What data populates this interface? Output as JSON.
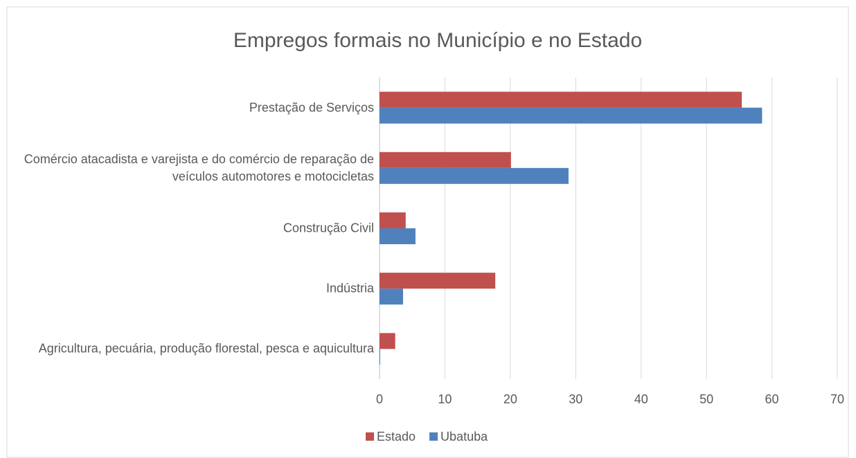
{
  "chart_data": {
    "type": "hbar",
    "title": "Empregos formais no Município e no Estado",
    "categories": [
      "Prestação de Serviços",
      "Comércio atacadista e varejista e do comércio de reparação de veículos automotores e motocicletas",
      "Construção Civil",
      "Indústria",
      "Agricultura, pecuária, produção florestal, pesca e aquicultura"
    ],
    "series": [
      {
        "name": "Estado",
        "color": "#c0504d",
        "values": [
          55.4,
          20.1,
          4.0,
          17.7,
          2.4
        ]
      },
      {
        "name": "Ubatuba",
        "color": "#4f81bd",
        "values": [
          58.5,
          28.9,
          5.5,
          3.6,
          0.1
        ]
      }
    ],
    "xlim": [
      0,
      70
    ],
    "xticks": [
      0,
      10,
      20,
      30,
      40,
      50,
      60,
      70
    ],
    "grid": true,
    "legend": "bottom"
  }
}
